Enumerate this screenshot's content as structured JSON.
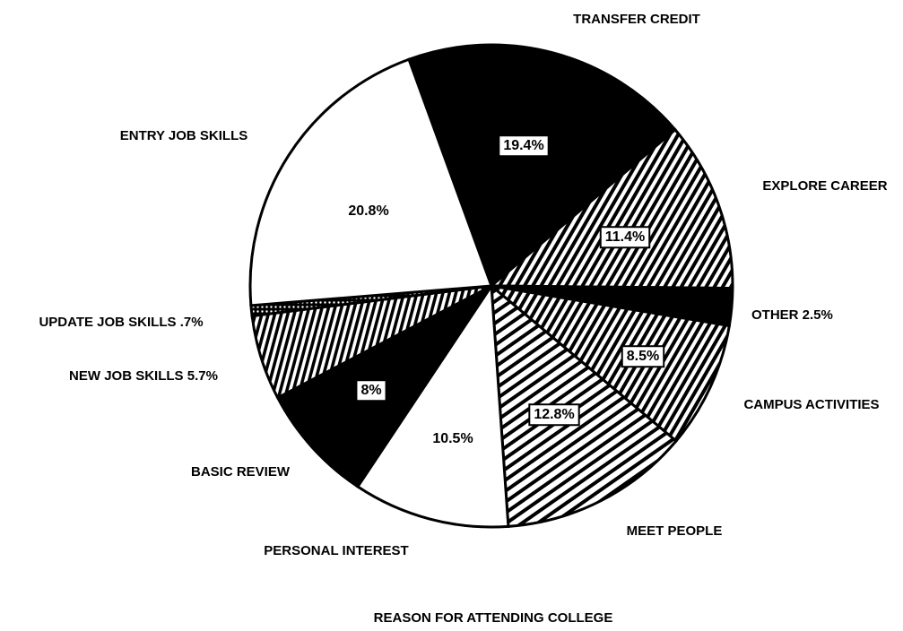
{
  "chart_data": {
    "type": "pie",
    "title": "REASON FOR ATTENDING COLLEGE",
    "categories": [
      "TRANSFER CREDIT",
      "EXPLORE CAREER",
      "OTHER",
      "CAMPUS ACTIVITIES",
      "MEET PEOPLE",
      "PERSONAL INTEREST",
      "BASIC REVIEW",
      "NEW JOB SKILLS",
      "UPDATE JOB SKILLS",
      "ENTRY JOB SKILLS"
    ],
    "values": [
      19.4,
      11.4,
      2.5,
      8.5,
      12.8,
      10.5,
      8,
      5.7,
      0.7,
      20.8
    ],
    "value_labels": [
      "19.4%",
      "11.4%",
      "2.5%",
      "8.5%",
      "12.8%",
      "10.5%",
      "8%",
      "5.7%",
      ".7%",
      "20.8%"
    ],
    "fills": [
      "solid-black",
      "hatch-diag",
      "solid-black",
      "hatch-diag",
      "hatch-back",
      "white",
      "solid-black",
      "hatch-vertical",
      "dots",
      "white"
    ]
  }
}
